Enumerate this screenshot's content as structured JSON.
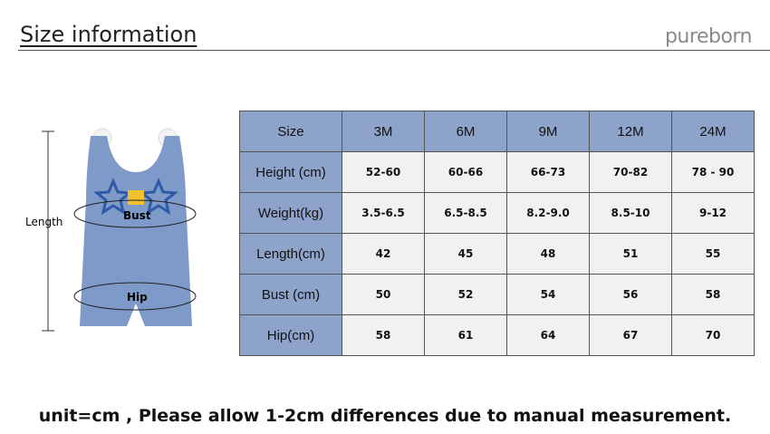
{
  "header": {
    "title": "Size information",
    "brand": "pureborn"
  },
  "diagram": {
    "length": "Length",
    "bust": "Bust",
    "hip": "Hip"
  },
  "table": {
    "columns": [
      "Size",
      "3M",
      "6M",
      "9M",
      "12M",
      "24M"
    ],
    "rows": [
      [
        "Height (cm)",
        "52-60",
        "60-66",
        "66-73",
        "70-82",
        "78 - 90"
      ],
      [
        "Weight(kg)",
        "3.5-6.5",
        "6.5-8.5",
        "8.2-9.0",
        "8.5-10",
        "9-12"
      ],
      [
        "Length(cm)",
        "42",
        "45",
        "48",
        "51",
        "55"
      ],
      [
        "Bust (cm)",
        "50",
        "52",
        "54",
        "56",
        "58"
      ],
      [
        "Hip(cm)",
        "58",
        "61",
        "64",
        "67",
        "70"
      ]
    ]
  },
  "footer": {
    "note": "unit=cm , Please allow 1-2cm differences due to manual measurement."
  }
}
